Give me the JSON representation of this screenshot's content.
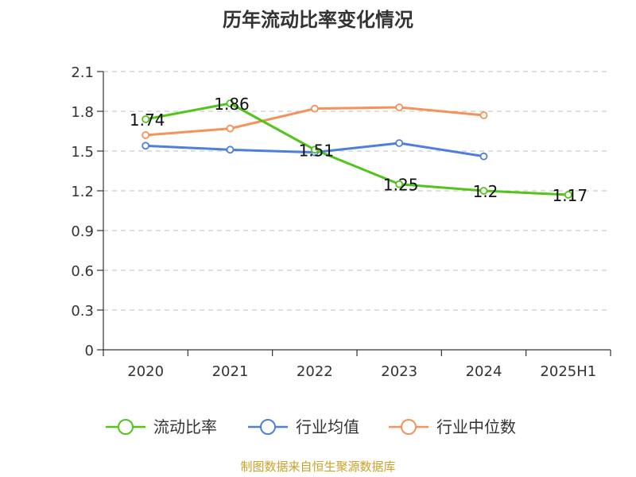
{
  "chart_data": {
    "type": "line",
    "title": "历年流动比率变化情况",
    "categories": [
      "2020",
      "2021",
      "2022",
      "2023",
      "2024",
      "2025H1"
    ],
    "ylim": [
      0,
      2.1
    ],
    "yticks": [
      "0",
      "0.3",
      "0.6",
      "0.9",
      "1.2",
      "1.5",
      "1.8",
      "2.1"
    ],
    "grid": true,
    "legend_position": "bottom",
    "series": [
      {
        "name": "流动比率",
        "color": "#52c41a",
        "values": [
          1.74,
          1.86,
          1.51,
          1.25,
          1.2,
          1.17
        ],
        "labels": [
          "1.74",
          "1.86",
          "1.51",
          "1.25",
          "1.2",
          "1.17"
        ]
      },
      {
        "name": "行业均值",
        "color": "#4e7fdc",
        "values": [
          1.54,
          1.51,
          1.49,
          1.56,
          1.46,
          null
        ]
      },
      {
        "name": "行业中位数",
        "color": "#f5915a",
        "values": [
          1.62,
          1.67,
          1.82,
          1.83,
          1.77,
          null
        ]
      }
    ],
    "source": "制图数据来自恒生聚源数据库"
  }
}
